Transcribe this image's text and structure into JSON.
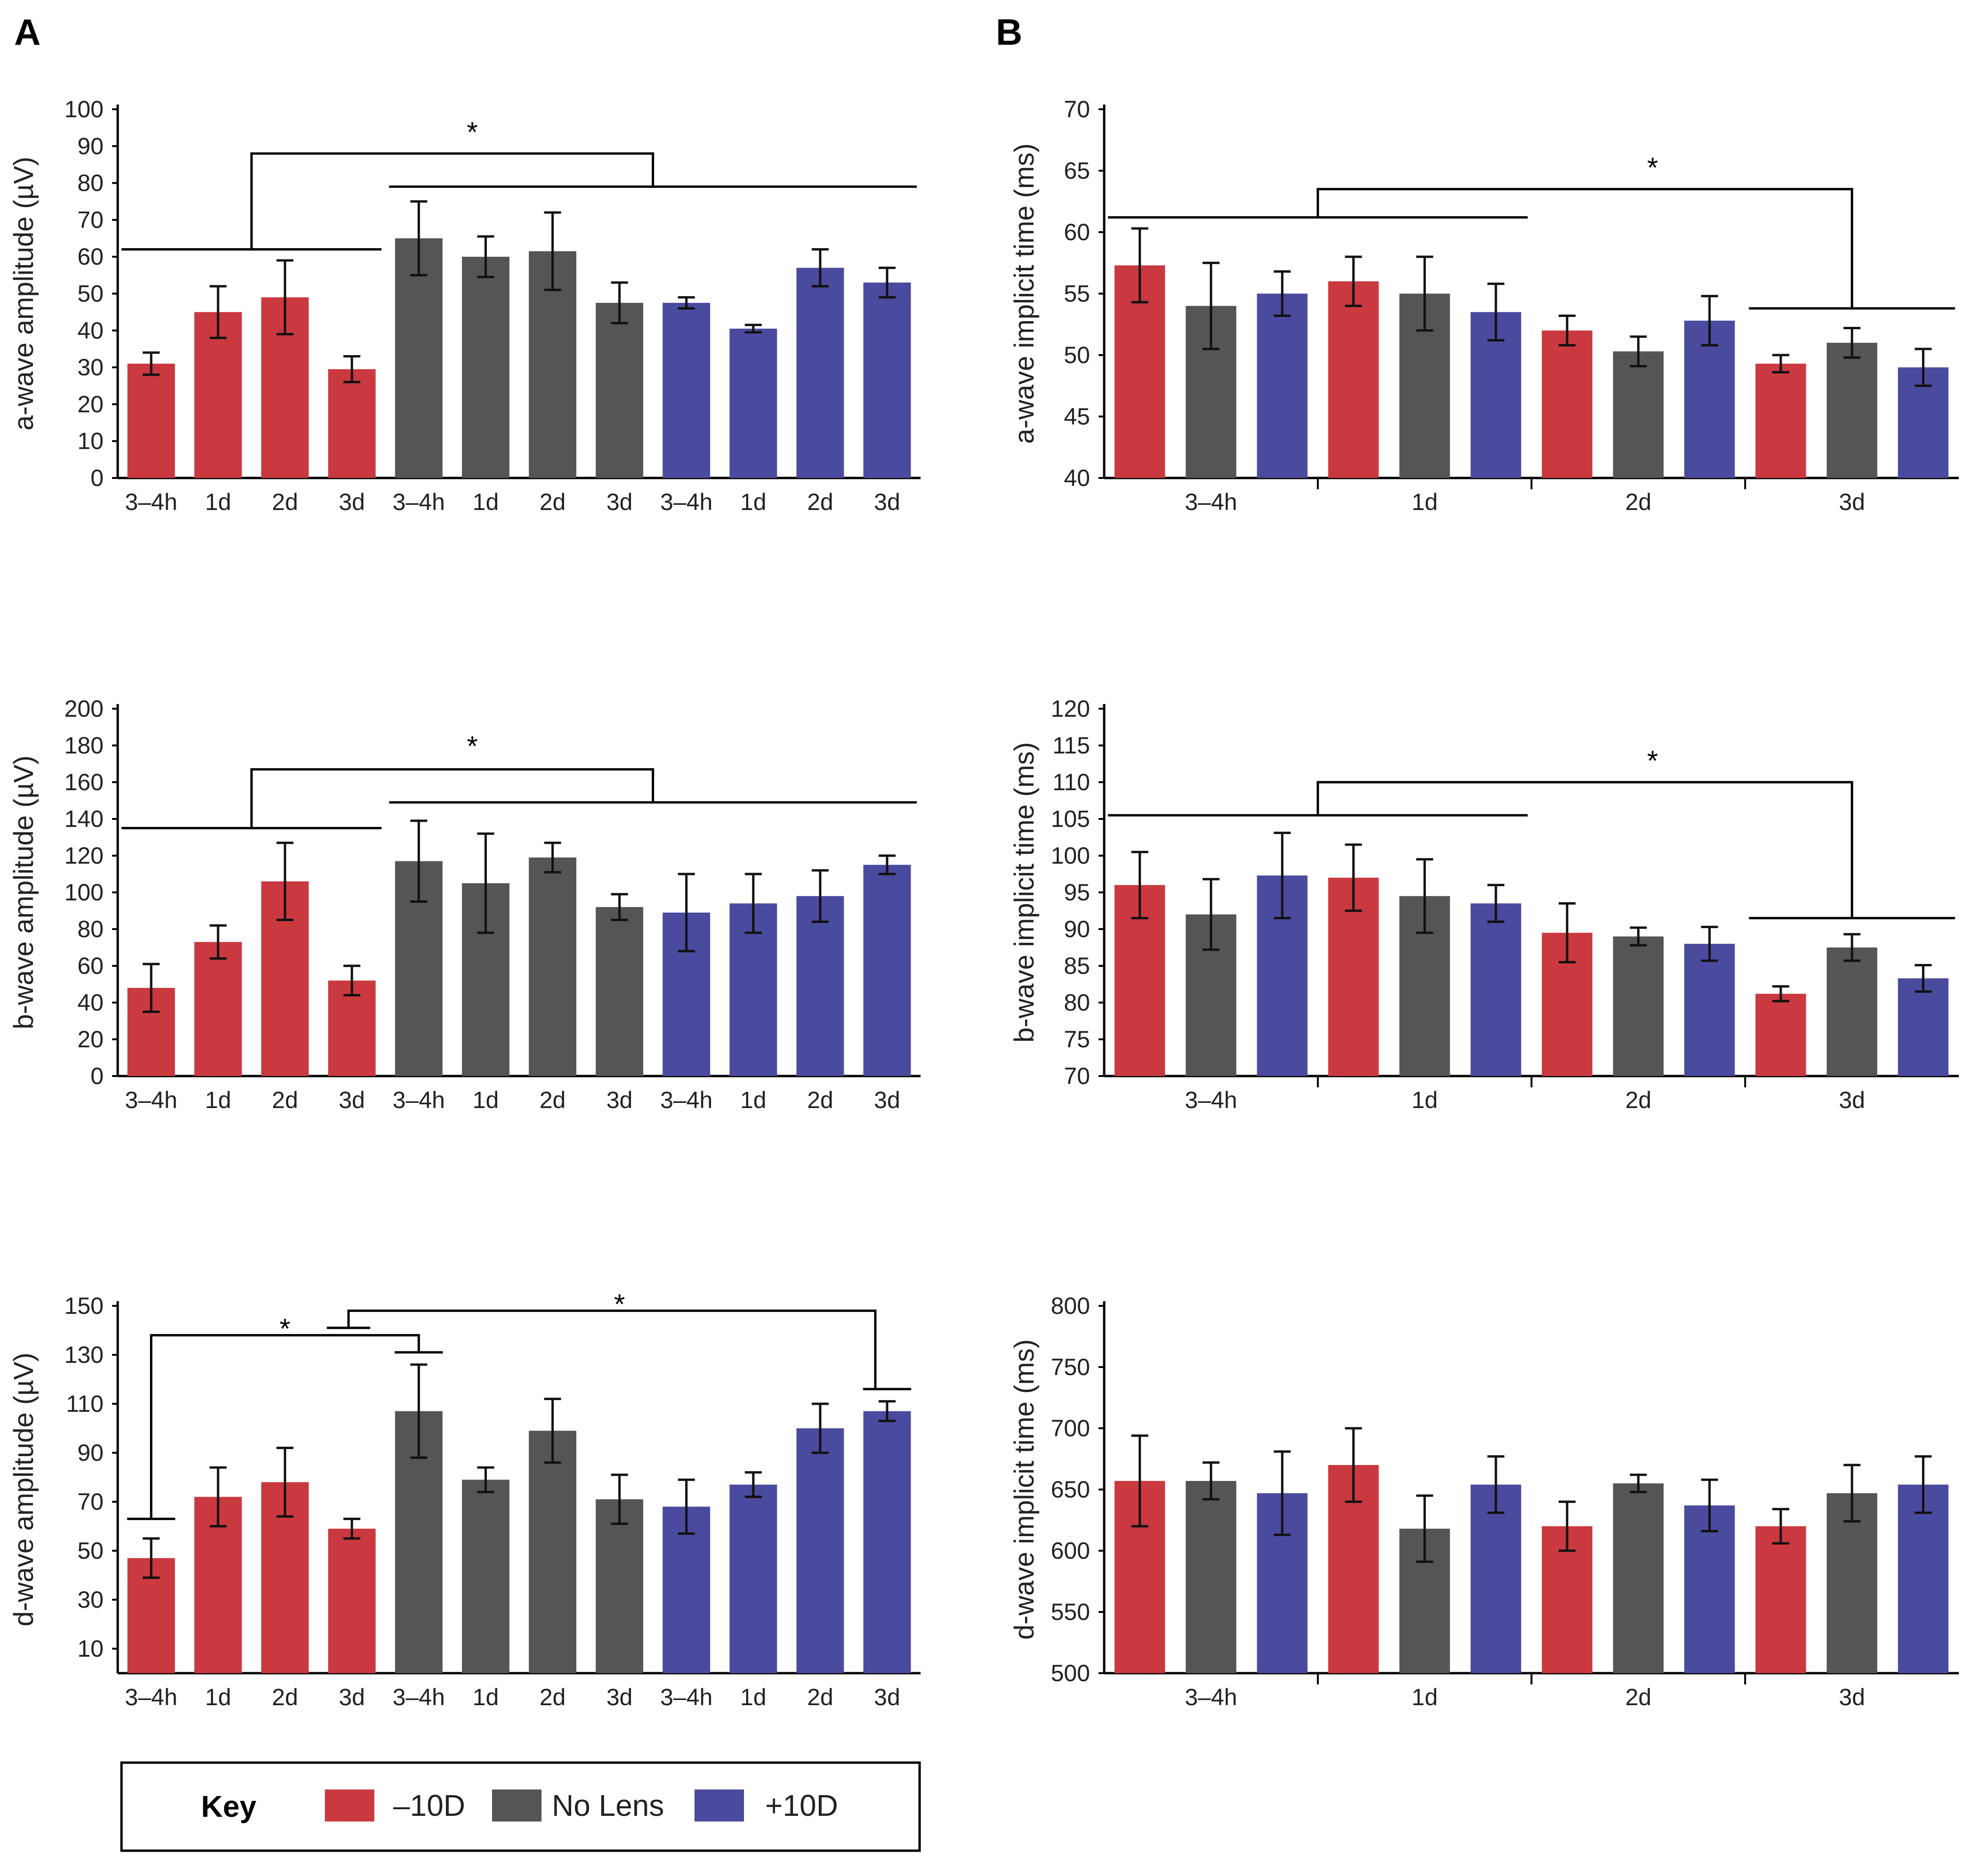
{
  "panel_labels": [
    "A",
    "B"
  ],
  "colors": {
    "-10D": "#c9393f",
    "No Lens": "#555555",
    "+10D": "#4a4a9e"
  },
  "legend": {
    "title": "Key",
    "entries": [
      {
        "label": "–10D",
        "color": "#c9393f"
      },
      {
        "label": "No Lens",
        "color": "#555555"
      },
      {
        "label": "+10D",
        "color": "#4a4a9e"
      }
    ]
  },
  "chart_data": [
    {
      "id": "a-wave-amplitude",
      "type": "bar",
      "ylabel": "a-wave amplitude (µV)",
      "ylim": [
        0,
        100
      ],
      "yticks": [
        0,
        10,
        20,
        30,
        40,
        50,
        60,
        70,
        80,
        90,
        100
      ],
      "categories": [
        "3–4h",
        "1d",
        "2d",
        "3d",
        "3–4h",
        "1d",
        "2d",
        "3d",
        "3–4h",
        "1d",
        "2d",
        "3d"
      ],
      "groups": [
        "-10D",
        "-10D",
        "-10D",
        "-10D",
        "No Lens",
        "No Lens",
        "No Lens",
        "No Lens",
        "+10D",
        "+10D",
        "+10D",
        "+10D"
      ],
      "values": [
        31,
        45,
        49,
        29.5,
        65,
        60,
        61.5,
        47.5,
        47.5,
        40.5,
        57,
        53
      ],
      "errors": [
        3,
        7,
        10,
        3.5,
        10,
        5.5,
        10.5,
        5.5,
        1.5,
        1,
        5,
        4
      ],
      "annotations": [
        "*"
      ]
    },
    {
      "id": "b-wave-amplitude",
      "type": "bar",
      "ylabel": "b-wave amplitude (µV)",
      "ylim": [
        0,
        200
      ],
      "yticks": [
        0,
        20,
        40,
        60,
        80,
        100,
        120,
        140,
        160,
        180,
        200
      ],
      "categories": [
        "3–4h",
        "1d",
        "2d",
        "3d",
        "3–4h",
        "1d",
        "2d",
        "3d",
        "3–4h",
        "1d",
        "2d",
        "3d"
      ],
      "groups": [
        "-10D",
        "-10D",
        "-10D",
        "-10D",
        "No Lens",
        "No Lens",
        "No Lens",
        "No Lens",
        "+10D",
        "+10D",
        "+10D",
        "+10D"
      ],
      "values": [
        48,
        73,
        106,
        52,
        117,
        105,
        119,
        92,
        89,
        94,
        98,
        115
      ],
      "errors": [
        13,
        9,
        21,
        8,
        22,
        27,
        8,
        7,
        21,
        16,
        14,
        5
      ],
      "annotations": [
        "*"
      ]
    },
    {
      "id": "d-wave-amplitude",
      "type": "bar",
      "ylabel": "d-wave amplitude (µV)",
      "ylim": [
        0,
        150
      ],
      "yticks": [
        10,
        30,
        50,
        70,
        90,
        110,
        130,
        150
      ],
      "categories": [
        "3–4h",
        "1d",
        "2d",
        "3d",
        "3–4h",
        "1d",
        "2d",
        "3d",
        "3–4h",
        "1d",
        "2d",
        "3d"
      ],
      "groups": [
        "-10D",
        "-10D",
        "-10D",
        "-10D",
        "No Lens",
        "No Lens",
        "No Lens",
        "No Lens",
        "+10D",
        "+10D",
        "+10D",
        "+10D"
      ],
      "values": [
        47,
        72,
        78,
        59,
        107,
        79,
        99,
        71,
        68,
        77,
        100,
        107
      ],
      "errors": [
        8,
        12,
        14,
        4,
        19,
        5,
        13,
        10,
        11,
        5,
        10,
        4
      ],
      "annotations": [
        "*",
        "*"
      ]
    },
    {
      "id": "a-wave-implicit-time",
      "type": "bar",
      "ylabel": "a-wave implicit time (ms)",
      "ylim": [
        40,
        70
      ],
      "yticks": [
        40,
        45,
        50,
        55,
        60,
        65,
        70
      ],
      "categories": [
        "3–4h",
        "1d",
        "2d",
        "3d"
      ],
      "series": [
        {
          "name": "-10D",
          "values": [
            57.3,
            56,
            52,
            49.3
          ],
          "errors": [
            3,
            2,
            1.2,
            0.7
          ]
        },
        {
          "name": "No Lens",
          "values": [
            54,
            55,
            50.3,
            51
          ],
          "errors": [
            3.5,
            3,
            1.2,
            1.2
          ]
        },
        {
          "name": "+10D",
          "values": [
            55,
            53.5,
            52.8,
            49
          ],
          "errors": [
            1.8,
            2.3,
            2,
            1.5
          ]
        }
      ],
      "annotations": [
        "*"
      ]
    },
    {
      "id": "b-wave-implicit-time",
      "type": "bar",
      "ylabel": "b-wave implicit time (ms)",
      "ylim": [
        70,
        120
      ],
      "yticks": [
        70,
        75,
        80,
        85,
        90,
        95,
        100,
        105,
        110,
        115,
        120
      ],
      "categories": [
        "3–4h",
        "1d",
        "2d",
        "3d"
      ],
      "series": [
        {
          "name": "-10D",
          "values": [
            96,
            97,
            89.5,
            81.2
          ],
          "errors": [
            4.5,
            4.5,
            4,
            1
          ]
        },
        {
          "name": "No Lens",
          "values": [
            92,
            94.5,
            89,
            87.5
          ],
          "errors": [
            4.8,
            5,
            1.2,
            1.8
          ]
        },
        {
          "name": "+10D",
          "values": [
            97.3,
            93.5,
            88,
            83.3
          ],
          "errors": [
            5.8,
            2.5,
            2.3,
            1.8
          ]
        }
      ],
      "annotations": [
        "*"
      ]
    },
    {
      "id": "d-wave-implicit-time",
      "type": "bar",
      "ylabel": "d-wave implicit time (ms)",
      "ylim": [
        500,
        800
      ],
      "yticks": [
        500,
        550,
        600,
        650,
        700,
        750,
        800
      ],
      "categories": [
        "3–4h",
        "1d",
        "2d",
        "3d"
      ],
      "series": [
        {
          "name": "-10D",
          "values": [
            657,
            670,
            620,
            620
          ],
          "errors": [
            37,
            30,
            20,
            14
          ]
        },
        {
          "name": "No Lens",
          "values": [
            657,
            618,
            655,
            647
          ],
          "errors": [
            15,
            27,
            7,
            23
          ]
        },
        {
          "name": "+10D",
          "values": [
            647,
            654,
            637,
            654
          ],
          "errors": [
            34,
            23,
            21,
            23
          ]
        }
      ],
      "annotations": []
    }
  ]
}
